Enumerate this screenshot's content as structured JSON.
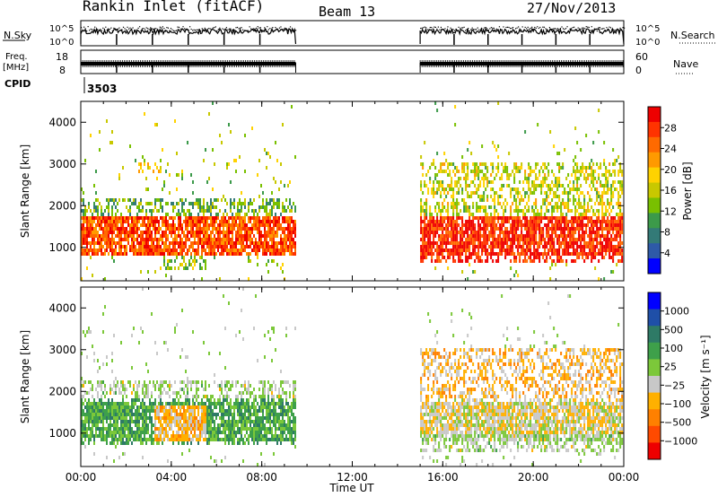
{
  "header": {
    "title": "Rankin Inlet (fitACF)",
    "beam": "Beam 13",
    "date": "27/Nov/2013"
  },
  "status_panels": {
    "nsky_label": "N.Sky",
    "nsky_ticks": [
      "10^5",
      "10^0"
    ],
    "nsearch_label": "N.Search",
    "nsearch_ticks": [
      "10^5",
      "10^0"
    ],
    "freq_label": "Freq.",
    "freq_unit": "[MHz]",
    "freq_ticks": [
      "18",
      "8"
    ],
    "nave_label": "Nave",
    "nave_ticks": [
      "60",
      "0"
    ],
    "cpid_label": "CPID",
    "cpid_value": "3503"
  },
  "chart_data": [
    {
      "type": "heatmap",
      "name": "power",
      "ylabel": "Slant Range [km]",
      "yticks": [
        1000,
        2000,
        3000,
        4000
      ],
      "ylim": [
        200,
        4500
      ],
      "xlim": [
        0,
        24
      ],
      "xticks": [
        0,
        4,
        8,
        12,
        16,
        20,
        24
      ],
      "colorbar": {
        "label": "Power [dB]",
        "ticks": [
          "28",
          "24",
          "20",
          "16",
          "12",
          "8",
          "4"
        ],
        "colors": [
          "#ee0000",
          "#ff3300",
          "#ff6a00",
          "#ff9a00",
          "#ffd200",
          "#c8c800",
          "#79c000",
          "#3c9a4a",
          "#337a77",
          "#2e5aa8",
          "#0000ff"
        ]
      },
      "data_intervals": [
        [
          0,
          9.5
        ],
        [
          15,
          24
        ]
      ],
      "regions": [
        {
          "t0": 0,
          "t1": 9.5,
          "r0": 800,
          "r1": 1700,
          "value": 26
        },
        {
          "t0": 0,
          "t1": 9.5,
          "r0": 1700,
          "r1": 2100,
          "value": 12
        },
        {
          "t0": 2.5,
          "t1": 3.5,
          "r0": 2700,
          "r1": 3000,
          "value": 18
        },
        {
          "t0": 3.5,
          "t1": 5.5,
          "r0": 400,
          "r1": 800,
          "value": 14
        },
        {
          "t0": 15,
          "t1": 24,
          "r0": 600,
          "r1": 1700,
          "value": 28
        },
        {
          "t0": 15,
          "t1": 24,
          "r0": 1700,
          "r1": 3000,
          "value": 16
        }
      ]
    },
    {
      "type": "heatmap",
      "name": "velocity",
      "ylabel": "Slant Range [km]",
      "yticks": [
        1000,
        2000,
        3000,
        4000
      ],
      "ylim": [
        200,
        4500
      ],
      "xlim": [
        0,
        24
      ],
      "xticks": [
        0,
        4,
        8,
        12,
        16,
        20,
        24
      ],
      "colorbar": {
        "label": "Velocity [m s⁻¹]",
        "ticks": [
          "1000",
          "500",
          "100",
          "25",
          "−25",
          "−100",
          "−500",
          "−1000"
        ],
        "colors": [
          "#0000ff",
          "#1f4fa8",
          "#2e7a66",
          "#3ea04a",
          "#7cc83a",
          "#c8c8c8",
          "#ffb000",
          "#ff8000",
          "#ff4a00",
          "#ee0000"
        ]
      },
      "data_intervals": [
        [
          0,
          9.5
        ],
        [
          15,
          24
        ]
      ],
      "regions": [
        {
          "t0": 0,
          "t1": 9.5,
          "r0": 700,
          "r1": 1800,
          "value": 300
        },
        {
          "t0": 3.2,
          "t1": 5.5,
          "r0": 800,
          "r1": 1600,
          "value": -300
        },
        {
          "t0": 0,
          "t1": 9.5,
          "r0": 1800,
          "r1": 2200,
          "value": 0
        },
        {
          "t0": 15,
          "t1": 24,
          "r0": 500,
          "r1": 900,
          "value": 0
        },
        {
          "t0": 15,
          "t1": 24,
          "r0": 900,
          "r1": 1800,
          "value": -150
        },
        {
          "t0": 15,
          "t1": 24,
          "r0": 1800,
          "r1": 3000,
          "value": -300
        }
      ]
    }
  ],
  "xaxis": {
    "ticklabels": [
      "00:00",
      "04:00",
      "08:00",
      "12:00",
      "16:00",
      "20:00",
      "00:00"
    ],
    "label": "Time UT"
  }
}
